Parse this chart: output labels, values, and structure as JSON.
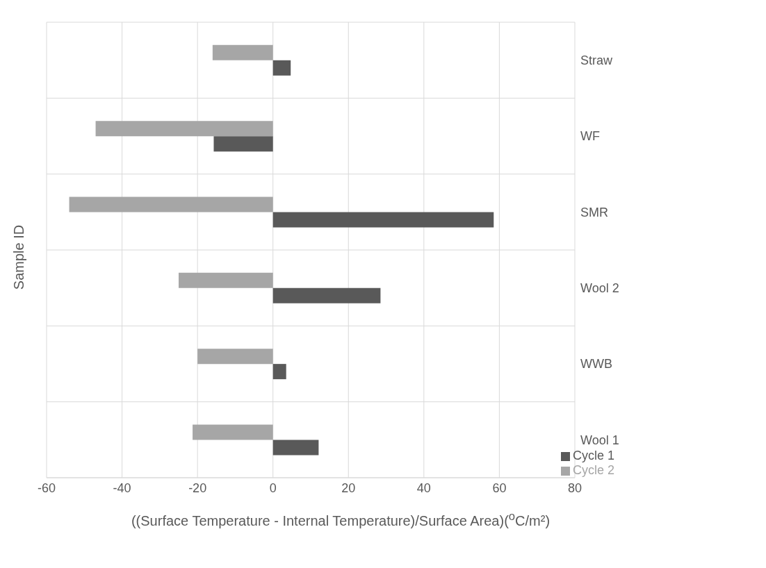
{
  "chart_data": {
    "type": "bar",
    "orientation": "horizontal",
    "xlabel": "((Surface Temperature - Internal Temperature)/Surface Area)($^{o}$C/m²)",
    "ylabel": "Sample ID",
    "categories": [
      "Straw",
      "WF",
      "SMR",
      "Wool 2",
      "WWB",
      "Wool 1"
    ],
    "series": [
      {
        "name": "Cycle 2",
        "color": "#a6a6a6",
        "values": [
          -16,
          -47,
          -54,
          -25,
          -20,
          -21.3
        ]
      },
      {
        "name": "Cycle 1",
        "color": "#595959",
        "values": [
          4.7,
          -15.7,
          58.5,
          28.5,
          3.5,
          12.1
        ]
      }
    ],
    "xlim": [
      -60,
      80
    ],
    "xticks": [
      -60,
      -40,
      -20,
      0,
      20,
      40,
      60,
      80
    ],
    "grid": true,
    "legend": "bottom right"
  }
}
